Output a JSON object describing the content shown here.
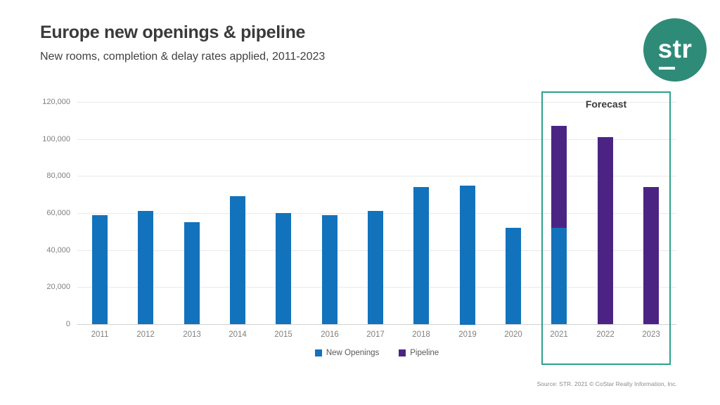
{
  "logo": {
    "text": "str",
    "bg_color": "#2e8b78"
  },
  "footer": {
    "source": "Source: STR. 2021 © CoStar Realty Information, Inc."
  },
  "chart_data": {
    "type": "bar",
    "stacked": true,
    "title": "Europe new openings & pipeline",
    "subtitle": "New rooms, completion & delay rates applied, 2011-2023",
    "categories": [
      "2011",
      "2012",
      "2013",
      "2014",
      "2015",
      "2016",
      "2017",
      "2018",
      "2019",
      "2020",
      "2021",
      "2022",
      "2023"
    ],
    "series": [
      {
        "name": "New Openings",
        "color": "#1272bc",
        "values": [
          59000,
          61000,
          55000,
          69000,
          60000,
          59000,
          61000,
          74000,
          75000,
          52000,
          52000,
          0,
          0
        ]
      },
      {
        "name": "Pipeline",
        "color": "#4b2483",
        "values": [
          0,
          0,
          0,
          0,
          0,
          0,
          0,
          0,
          0,
          0,
          55000,
          101000,
          74000
        ]
      }
    ],
    "xlabel": "",
    "ylabel": "",
    "ylim": [
      0,
      120000
    ],
    "ytick_step": 20000,
    "ytick_labels": [
      "0",
      "20,000",
      "40,000",
      "60,000",
      "80,000",
      "100,000",
      "120,000"
    ],
    "grid": true,
    "legend_position": "bottom",
    "forecast": {
      "label": "Forecast",
      "from": "2021",
      "to": "2023"
    },
    "accent_color": "#2ba28c"
  }
}
